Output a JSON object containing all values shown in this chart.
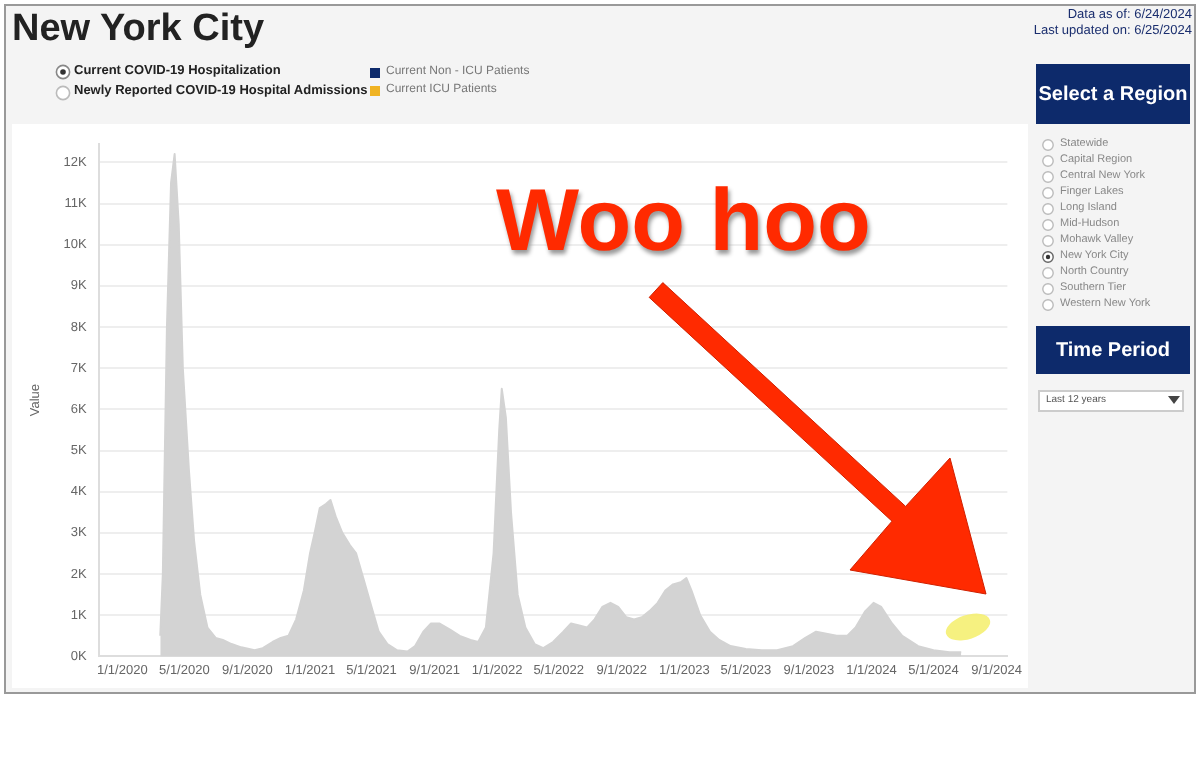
{
  "chart_data": {
    "type": "area",
    "title": "New York City",
    "ylabel": "Value",
    "annotations": [
      "Data as of: 6/24/2024",
      "Last updated on: 6/25/2024",
      "Current COVID-19 Hospitalization",
      "Newly Reported COVID-19 Hospital Admissions",
      "Current Non - ICU Patients",
      "Current ICU Patients",
      "Select a Region",
      "Statewide",
      "Capital Region",
      "Central New York",
      "Finger Lakes",
      "Long Island",
      "Mid-Hudson",
      "Mohawk Valley",
      "New York City",
      "North Country",
      "Southern Tier",
      "Western New York",
      "Time Period",
      "Last 12 years",
      "Woo hoo"
    ],
    "x": [
      "2020-03-15",
      "2020-03-20",
      "2020-03-28",
      "2020-04-05",
      "2020-04-12",
      "2020-04-20",
      "2020-04-28",
      "2020-05-10",
      "2020-05-20",
      "2020-06-01",
      "2020-06-15",
      "2020-07-01",
      "2020-07-15",
      "2020-08-01",
      "2020-08-20",
      "2020-09-15",
      "2020-10-01",
      "2020-10-20",
      "2020-11-05",
      "2020-11-20",
      "2020-12-05",
      "2020-12-20",
      "2021-01-01",
      "2021-01-10",
      "2021-01-20",
      "2021-02-01",
      "2021-02-10",
      "2021-02-20",
      "2021-03-05",
      "2021-03-20",
      "2021-04-01",
      "2021-04-15",
      "2021-05-01",
      "2021-05-15",
      "2021-06-01",
      "2021-06-20",
      "2021-07-10",
      "2021-07-25",
      "2021-08-10",
      "2021-08-25",
      "2021-09-10",
      "2021-10-01",
      "2021-10-20",
      "2021-11-10",
      "2021-11-25",
      "2021-12-10",
      "2021-12-25",
      "2022-01-05",
      "2022-01-10",
      "2022-01-18",
      "2022-01-28",
      "2022-02-10",
      "2022-02-25",
      "2022-03-15",
      "2022-04-01",
      "2022-04-20",
      "2022-05-10",
      "2022-05-25",
      "2022-06-10",
      "2022-06-25",
      "2022-07-10",
      "2022-07-25",
      "2022-08-10",
      "2022-08-25",
      "2022-09-10",
      "2022-09-25",
      "2022-10-10",
      "2022-10-25",
      "2022-11-10",
      "2022-11-25",
      "2022-12-10",
      "2022-12-25",
      "2023-01-05",
      "2023-01-15",
      "2023-02-01",
      "2023-02-20",
      "2023-03-10",
      "2023-04-01",
      "2023-05-01",
      "2023-06-01",
      "2023-07-01",
      "2023-08-01",
      "2023-08-25",
      "2023-09-15",
      "2023-10-05",
      "2023-10-25",
      "2023-11-15",
      "2023-12-01",
      "2023-12-20",
      "2024-01-05",
      "2024-01-20",
      "2024-02-10",
      "2024-03-01",
      "2024-04-01",
      "2024-05-01",
      "2024-06-01",
      "2024-06-24"
    ],
    "series": [
      {
        "color": "#d3d3d3",
        "values": [
          500,
          2000,
          8000,
          11500,
          12200,
          10500,
          7000,
          4500,
          2800,
          1500,
          700,
          450,
          400,
          300,
          220,
          150,
          200,
          350,
          450,
          500,
          900,
          1600,
          2500,
          3000,
          3600,
          3700,
          3800,
          3400,
          3000,
          2700,
          2500,
          1900,
          1200,
          600,
          300,
          150,
          120,
          250,
          600,
          800,
          800,
          650,
          500,
          400,
          350,
          700,
          2500,
          5500,
          6500,
          5800,
          3500,
          1500,
          700,
          300,
          200,
          350,
          600,
          800,
          750,
          700,
          900,
          1200,
          1300,
          1200,
          950,
          900,
          950,
          1100,
          1300,
          1600,
          1750,
          1800,
          1900,
          1600,
          1000,
          600,
          400,
          250,
          180,
          150,
          150,
          250,
          450,
          600,
          550,
          500,
          500,
          700,
          1100,
          1300,
          1200,
          800,
          500,
          250,
          150,
          100,
          100
        ]
      }
    ],
    "xlim": [
      "2019-11-16",
      "2024-09-22"
    ],
    "xticks": [
      {
        "value": "2020-01-01",
        "label": "1/1/2020"
      },
      {
        "value": "2020-05-01",
        "label": "5/1/2020"
      },
      {
        "value": "2020-09-01",
        "label": "9/1/2020"
      },
      {
        "value": "2021-01-01",
        "label": "1/1/2021"
      },
      {
        "value": "2021-05-01",
        "label": "5/1/2021"
      },
      {
        "value": "2021-09-01",
        "label": "9/1/2021"
      },
      {
        "value": "2022-01-01",
        "label": "1/1/2022"
      },
      {
        "value": "2022-05-01",
        "label": "5/1/2022"
      },
      {
        "value": "2022-09-01",
        "label": "9/1/2022"
      },
      {
        "value": "2023-01-01",
        "label": "1/1/2023"
      },
      {
        "value": "2023-05-01",
        "label": "5/1/2023"
      },
      {
        "value": "2023-09-01",
        "label": "9/1/2023"
      },
      {
        "value": "2024-01-01",
        "label": "1/1/2024"
      },
      {
        "value": "2024-05-01",
        "label": "5/1/2024"
      },
      {
        "value": "2024-09-01",
        "label": "9/1/2024"
      }
    ],
    "ylim": [
      0,
      12450
    ],
    "yticks": [
      {
        "value": 0,
        "label": "0K"
      },
      {
        "value": 1000,
        "label": "1K"
      },
      {
        "value": 2000,
        "label": "2K"
      },
      {
        "value": 3000,
        "label": "3K"
      },
      {
        "value": 4000,
        "label": "4K"
      },
      {
        "value": 5000,
        "label": "5K"
      },
      {
        "value": 6000,
        "label": "6K"
      },
      {
        "value": 7000,
        "label": "7K"
      },
      {
        "value": 8000,
        "label": "8K"
      },
      {
        "value": 9000,
        "label": "9K"
      },
      {
        "value": 10000,
        "label": "10K"
      },
      {
        "value": 11000,
        "label": "11K"
      },
      {
        "value": 12000,
        "label": "12K"
      }
    ],
    "grid": "y",
    "legend": false
  }
}
